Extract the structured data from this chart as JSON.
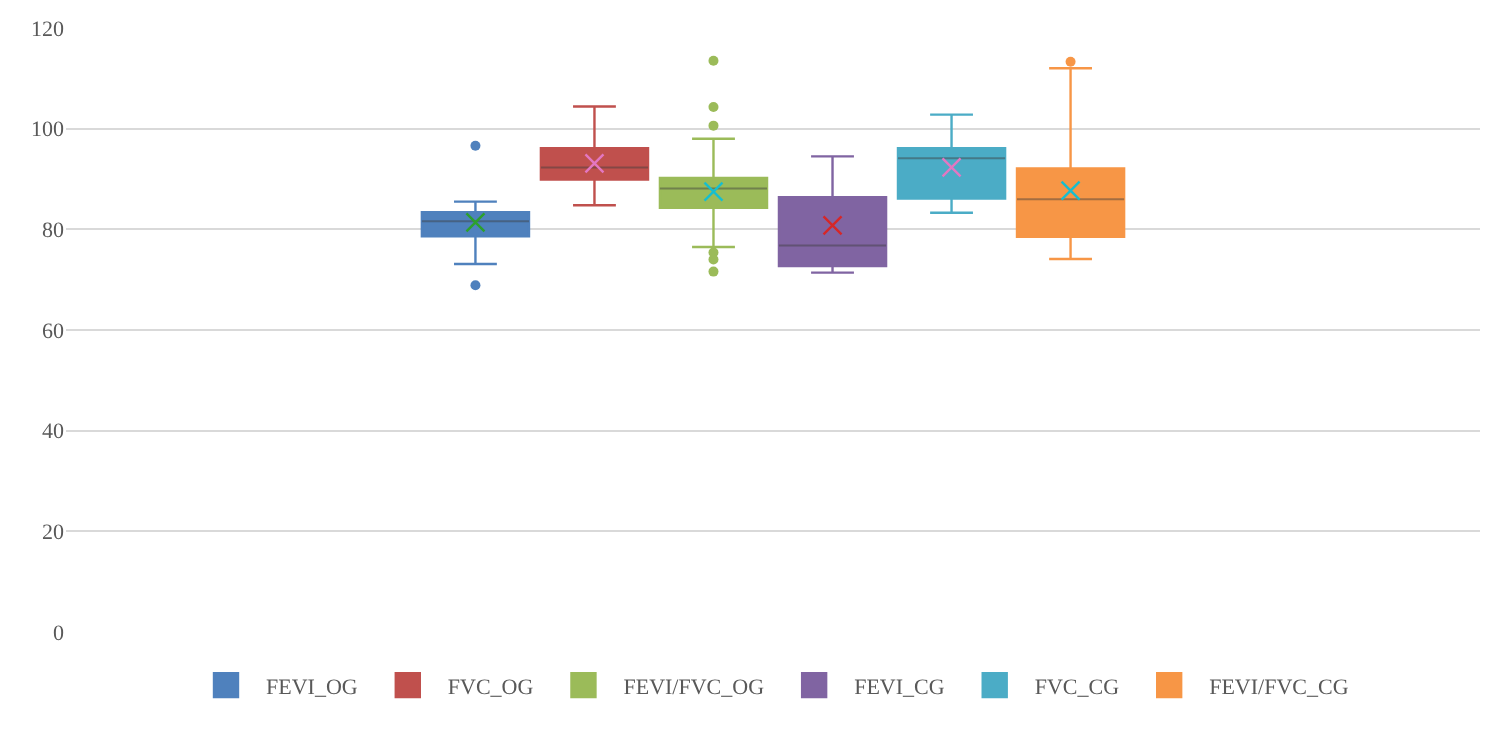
{
  "chart_data": {
    "type": "box",
    "categories": [
      null
    ],
    "ylim": [
      0,
      120
    ],
    "yticks": [
      0,
      20,
      40,
      60,
      80,
      100,
      120
    ],
    "grid": "y",
    "legend": "bottom",
    "tick_labels": "y",
    "series": [
      {
        "name": "FEVI_OG",
        "color": "#4f81bd",
        "boxes": [
          {
            "low": 73.1,
            "q1": 78.6,
            "median": 81.6,
            "q3": 83.4,
            "high": 85.5,
            "mean": 81.4,
            "outliers": [
              96.6,
              68.9
            ]
          }
        ]
      },
      {
        "name": "FVC_OG",
        "color": "#c0504d",
        "boxes": [
          {
            "low": 84.8,
            "q1": 89.9,
            "median": 92.3,
            "q3": 96.1,
            "high": 104.4,
            "mean": 93.1
          }
        ]
      },
      {
        "name": "FEVI/FVC_OG",
        "color": "#9bbb59",
        "boxes": [
          {
            "low": 76.5,
            "q1": 84.3,
            "median": 88.1,
            "q3": 90.2,
            "high": 98.0,
            "mean": 87.5,
            "outliers": [
              113.5,
              104.3,
              100.6,
              75.4,
              74.0,
              71.6
            ]
          }
        ]
      },
      {
        "name": "FEVI_CG",
        "color": "#8064a2",
        "boxes": [
          {
            "low": 71.4,
            "q1": 72.7,
            "median": 76.8,
            "q3": 86.4,
            "high": 94.5,
            "mean": 80.8
          }
        ]
      },
      {
        "name": "FVC_CG",
        "color": "#4bacc6",
        "boxes": [
          {
            "low": 83.3,
            "q1": 86.1,
            "median": 94.1,
            "q3": 96.1,
            "high": 102.8,
            "mean": 92.3
          }
        ]
      },
      {
        "name": "FEVI/FVC_CG",
        "color": "#f79646",
        "boxes": [
          {
            "low": 74.1,
            "q1": 78.5,
            "median": 86.0,
            "q3": 92.1,
            "high": 112.0,
            "mean": 87.7,
            "outliers": [
              113.3
            ]
          }
        ]
      }
    ]
  }
}
